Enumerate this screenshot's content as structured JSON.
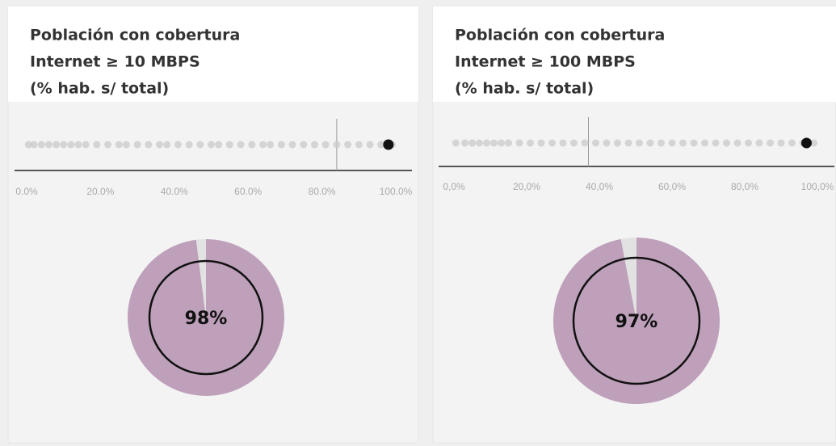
{
  "chart_data": [
    {
      "type": "strip-pie",
      "title": [
        "Población con cobertura",
        "Internet ≥ 10 MBPS",
        "(% hab. s/ total)"
      ],
      "dots": [
        0.5,
        2,
        4,
        6,
        8,
        10,
        12,
        14,
        16,
        19,
        22,
        25,
        27,
        30,
        33,
        36,
        38,
        41,
        44,
        47,
        50,
        52,
        55,
        58,
        61,
        64,
        66,
        69,
        72,
        75,
        78,
        81,
        84,
        87,
        90,
        93,
        96,
        99
      ],
      "dot_color": "#cccccc",
      "highlight": 98,
      "highlight_color": "#111111",
      "reference": 84,
      "xlim": [
        0,
        100
      ],
      "xticks": [
        {
          "value": 0,
          "label": "0.0%"
        },
        {
          "value": 20,
          "label": "20.0%"
        },
        {
          "value": 40,
          "label": "40.0%"
        },
        {
          "value": 60,
          "label": "60.0%"
        },
        {
          "value": 80,
          "label": "80.0%"
        },
        {
          "value": 100,
          "label": "100.0%"
        }
      ],
      "pie": {
        "values": [
          98,
          2
        ],
        "colors": [
          "#bfa0bb",
          "#e2e2e2"
        ],
        "value_labels": [
          "98%"
        ]
      }
    },
    {
      "type": "strip-pie",
      "title": [
        "Población con cobertura",
        "Internet ≥ 100 MBPS",
        "(% hab. s/ total)"
      ],
      "dots": [
        0.5,
        3,
        5,
        7,
        9,
        11,
        13,
        15,
        18,
        21,
        24,
        27,
        30,
        33,
        36,
        39,
        42,
        45,
        48,
        51,
        54,
        57,
        60,
        63,
        66,
        69,
        72,
        75,
        78,
        81,
        84,
        87,
        90,
        93,
        96,
        99
      ],
      "dot_color": "#cccccc",
      "highlight": 97,
      "highlight_color": "#111111",
      "reference": 37,
      "xlim": [
        0,
        100
      ],
      "xticks": [
        {
          "value": 0,
          "label": "0,0%"
        },
        {
          "value": 20,
          "label": "20,0%"
        },
        {
          "value": 40,
          "label": "40,0%"
        },
        {
          "value": 60,
          "label": "60,0%"
        },
        {
          "value": 80,
          "label": "80,0%"
        },
        {
          "value": 100,
          "label": "100,0%"
        }
      ],
      "pie": {
        "values": [
          97,
          3
        ],
        "colors": [
          "#bfa0bb",
          "#e2e2e2"
        ],
        "value_labels": [
          "97%"
        ]
      }
    }
  ]
}
